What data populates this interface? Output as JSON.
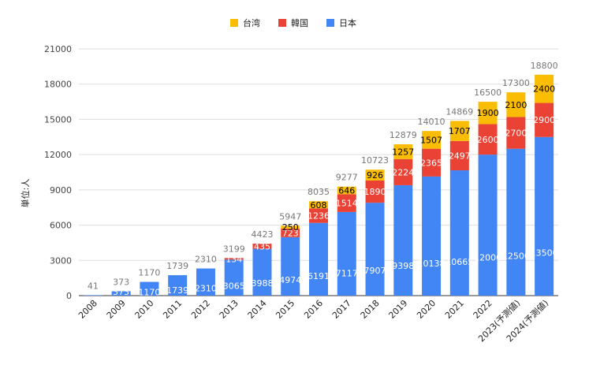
{
  "chart_data": {
    "type": "bar",
    "stacked": true,
    "title": "",
    "xlabel": "",
    "ylabel": "単位:人",
    "ylim": [
      0,
      21000
    ],
    "yticks": [
      0,
      3000,
      6000,
      9000,
      12000,
      15000,
      18000,
      21000
    ],
    "grid": true,
    "legend_position": "top",
    "categories": [
      "2008",
      "2009",
      "2010",
      "2011",
      "2012",
      "2013",
      "2014",
      "2015",
      "2016",
      "2017",
      "2018",
      "2019",
      "2020",
      "2021",
      "2022",
      "2023(予測値)",
      "2024(予測値)"
    ],
    "series": [
      {
        "name": "日本",
        "color": "#4285f4",
        "text_color": "#ffffff",
        "values": [
          41,
          373,
          1170,
          1739,
          2310,
          3065,
          3988,
          4974,
          6191,
          7117,
          7907,
          9398,
          10138,
          10665,
          12000,
          12500,
          13500
        ]
      },
      {
        "name": "韓国",
        "color": "#ea4335",
        "text_color": "#ffffff",
        "values": [
          0,
          0,
          0,
          0,
          0,
          134,
          435,
          723,
          1236,
          1514,
          1890,
          2224,
          2365,
          2497,
          2600,
          2700,
          2900
        ]
      },
      {
        "name": "台湾",
        "color": "#fbbc04",
        "text_color": "#000000",
        "values": [
          0,
          0,
          0,
          0,
          0,
          0,
          0,
          250,
          608,
          646,
          926,
          1257,
          1507,
          1707,
          1900,
          2100,
          2400
        ]
      }
    ],
    "totals": [
      41,
      373,
      1170,
      1739,
      2310,
      3199,
      4423,
      5947,
      8035,
      9277,
      10723,
      12879,
      14010,
      14869,
      16500,
      17300,
      18800
    ],
    "legend_order": [
      "台湾",
      "韓国",
      "日本"
    ],
    "segment_labels": {
      "日本": [
        "41",
        "373",
        "1170",
        "1739",
        "2310",
        "3065",
        "3988",
        "4974",
        "6191",
        "7117",
        "7907",
        "9398",
        "10138",
        "10665",
        "12000",
        "12500",
        "13500"
      ],
      "韓国": [
        "",
        "",
        "",
        "",
        "",
        "134",
        "435",
        "723",
        "1236",
        "1514",
        "1890",
        "2224",
        "2365",
        "2497",
        "2600",
        "2700",
        "2900"
      ],
      "台湾": [
        "",
        "",
        "",
        "",
        "",
        "",
        "",
        "250",
        "608",
        "646",
        "926",
        "1257",
        "1507",
        "1707",
        "1900",
        "2100",
        "2400"
      ]
    }
  }
}
